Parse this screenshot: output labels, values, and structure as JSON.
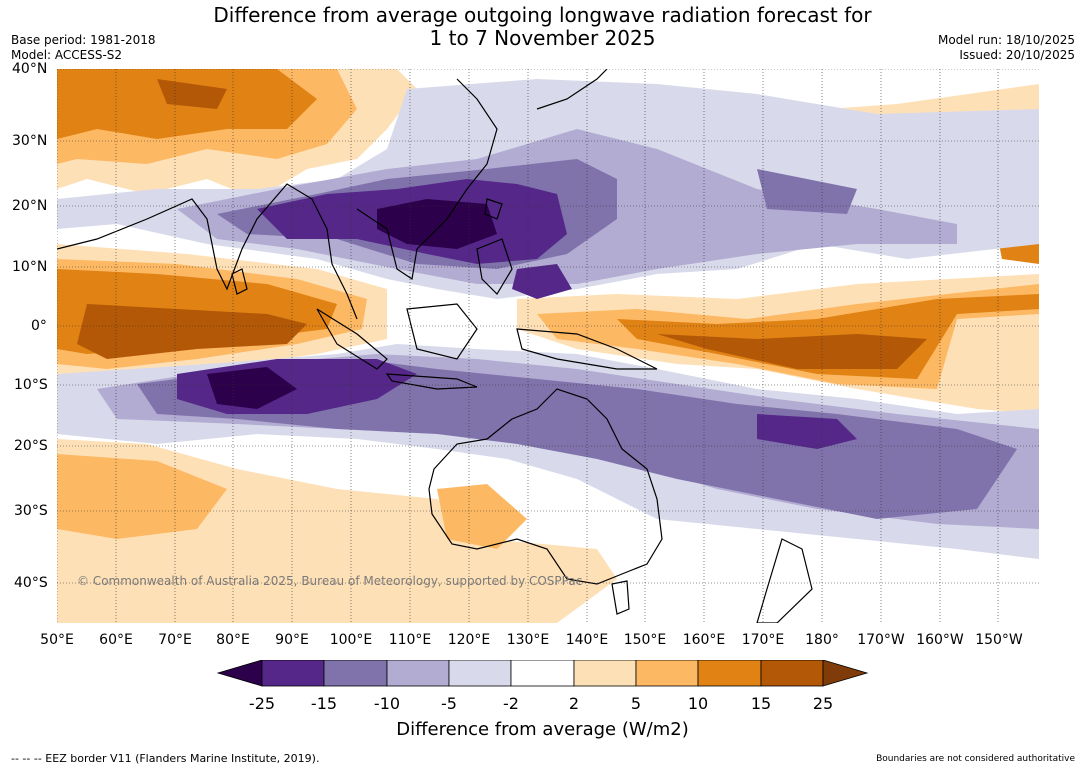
{
  "title_line1": "Difference from average outgoing longwave radiation forecast for",
  "title_line2": "1 to 7 November 2025",
  "base_period": "Base period: 1981-2018",
  "model": "Model: ACCESS-S2",
  "model_run": "Model run: 18/10/2025",
  "issued": "Issued: 20/10/2025",
  "copyright": "© Commonwealth of Australia 2025, Bureau of Meteorology, supported by COSPPac",
  "lat_labels": [
    "40°N",
    "30°N",
    "20°N",
    "10°N",
    "0°",
    "10°S",
    "20°S",
    "30°S",
    "40°S"
  ],
  "lon_labels": [
    "50°E",
    "60°E",
    "70°E",
    "80°E",
    "90°E",
    "100°E",
    "110°E",
    "120°E",
    "130°E",
    "140°E",
    "150°E",
    "160°E",
    "170°E",
    "180°",
    "170°W",
    "160°W",
    "150°W"
  ],
  "colorbar": {
    "ticks": [
      "-25",
      "-15",
      "-10",
      "-5",
      "-2",
      "2",
      "5",
      "10",
      "15",
      "25"
    ],
    "colors": [
      "#2d004b",
      "#542788",
      "#8073ac",
      "#b2abd2",
      "#d8daeb",
      "#ffffff",
      "#fee0b6",
      "#fdb863",
      "#e08214",
      "#b35806",
      "#7f3b08"
    ],
    "title": "Difference from average (W/m2)"
  },
  "footer_left": "--  --  -- EEZ border V11 (Flanders Marine Institute, 2019).",
  "footer_right": "Boundaries are not considered authoritative"
}
